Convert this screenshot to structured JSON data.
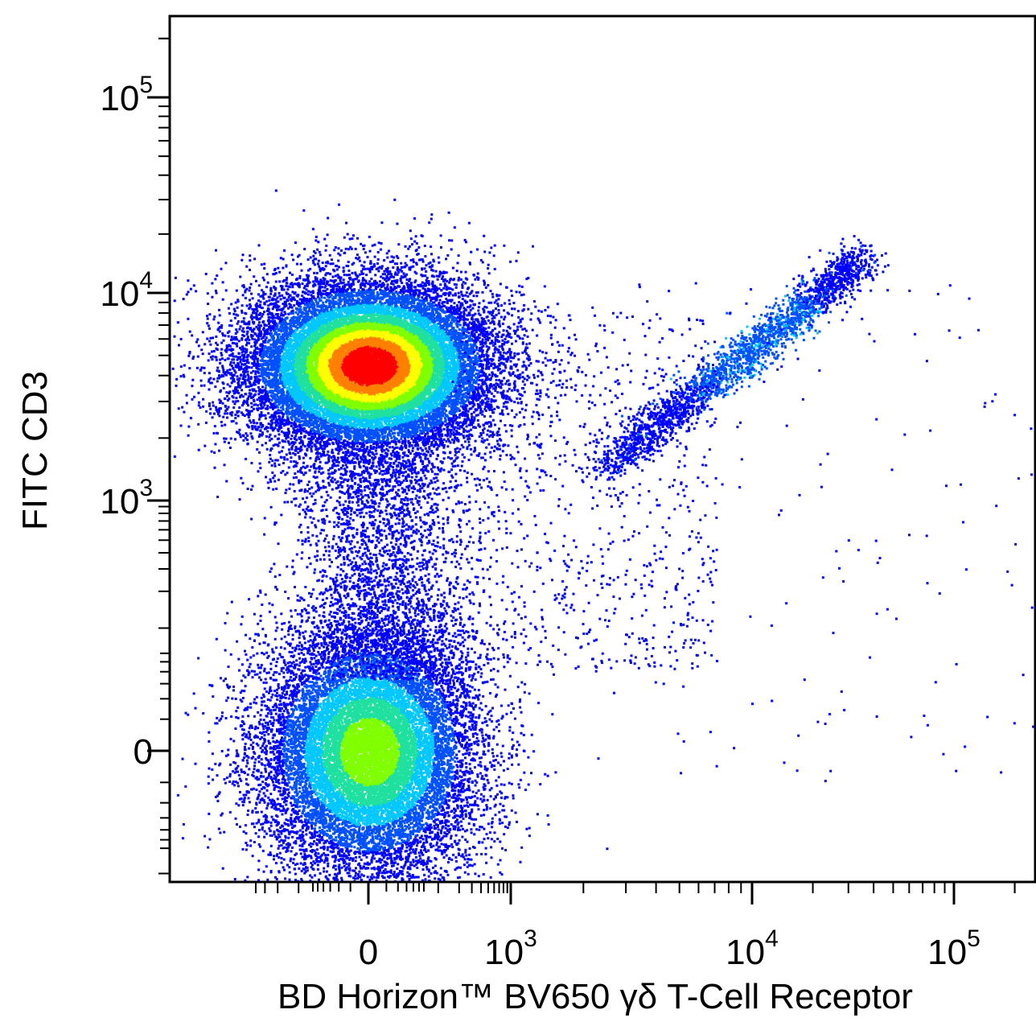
{
  "chart_data": {
    "type": "scatter",
    "style": "flow-cytometry pseudocolor density dot plot (biexponential axes)",
    "xlabel": "BD Horizon™ BV650 γδ T-Cell Receptor",
    "ylabel": "FITC CD3",
    "x_axis": {
      "scale": "biexponential",
      "range": [
        -400,
        250000
      ],
      "tick_labels": [
        {
          "base": "0",
          "exp": "",
          "value": 0
        },
        {
          "base": "10",
          "exp": "3",
          "value": 1000
        },
        {
          "base": "10",
          "exp": "4",
          "value": 10000
        },
        {
          "base": "10",
          "exp": "5",
          "value": 100000
        }
      ]
    },
    "y_axis": {
      "scale": "biexponential",
      "range": [
        -300,
        250000
      ],
      "tick_labels": [
        {
          "base": "0",
          "exp": "",
          "value": 0
        },
        {
          "base": "10",
          "exp": "3",
          "value": 1000
        },
        {
          "base": "10",
          "exp": "4",
          "value": 10000
        },
        {
          "base": "10",
          "exp": "5",
          "value": 100000
        }
      ]
    },
    "grid": false,
    "legend": "none",
    "populations": [
      {
        "description": "CD3+ gamma-delta TCR- cells (densest cluster)",
        "x_center": 0,
        "y_center": 4500,
        "relative_density": 1.0
      },
      {
        "description": "CD3- gamma-delta TCR- cells",
        "x_center": 0,
        "y_center": 0,
        "relative_density": 0.6
      },
      {
        "description": "CD3+ gamma-delta TCR+ cells (diagonal streak)",
        "x_range": [
          2500,
          35000
        ],
        "y_range": [
          1500,
          15000
        ],
        "relative_density": 0.15
      }
    ],
    "density_colormap": [
      "#0000ff",
      "#0050ff",
      "#00c8ff",
      "#20e0a0",
      "#80ff00",
      "#ffff00",
      "#ff8000",
      "#ff0000"
    ]
  }
}
